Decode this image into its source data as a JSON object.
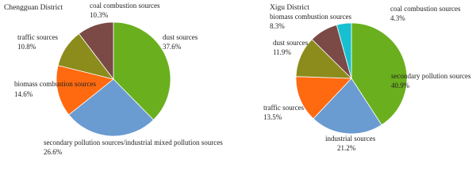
{
  "chart_data": [
    {
      "type": "pie",
      "title": "Chengguan District",
      "categories": [
        "dust sources",
        "secondary pollution sources/industrial mixed pollution sources",
        "biomass combustion sources",
        "traffic sources",
        "coal combustion sources"
      ],
      "values": [
        37.6,
        26.6,
        14.6,
        10.8,
        10.3
      ],
      "value_labels": [
        "37.6%",
        "26.6%",
        "14.6%",
        "10.8%",
        "10.3%"
      ],
      "colors": [
        "#6aaf1e",
        "#6a9bd1",
        "#ff6a10",
        "#8c8c1c",
        "#7b4a46"
      ]
    },
    {
      "type": "pie",
      "title": "Xigu District",
      "categories": [
        "secondary pollution sources",
        "industrial sources",
        "traffic sources",
        "dust sources",
        "biomass combustion sources",
        "coal combustion sources"
      ],
      "values": [
        40.9,
        21.2,
        13.5,
        11.9,
        8.3,
        4.3
      ],
      "value_labels": [
        "40.9%",
        "21.2%",
        "13.5%",
        "11.9%",
        "8.3%",
        "4.3%"
      ],
      "colors": [
        "#6aaf1e",
        "#6a9bd1",
        "#ff6a10",
        "#8c8c1c",
        "#7b4a46",
        "#17c0d0"
      ]
    }
  ]
}
